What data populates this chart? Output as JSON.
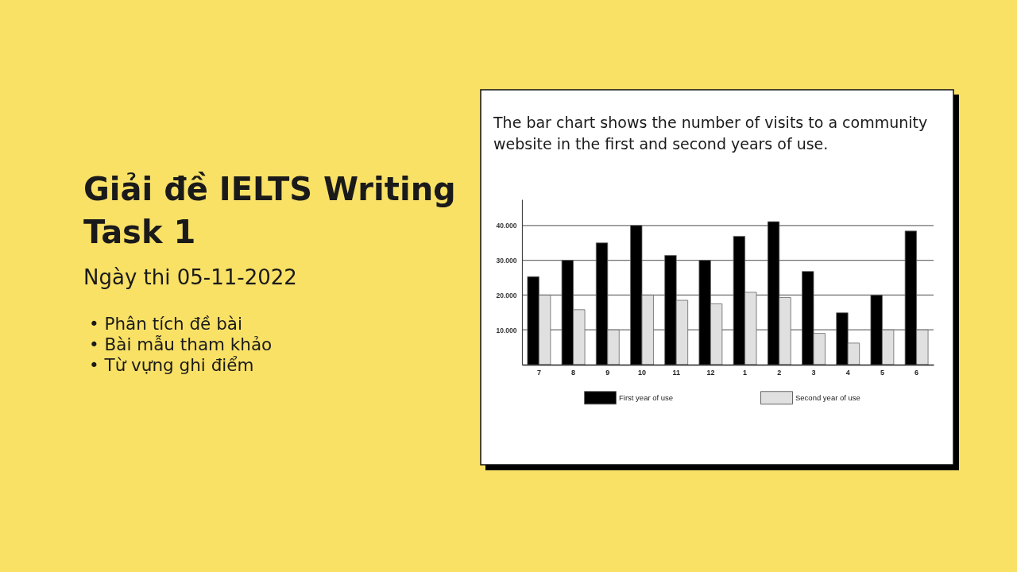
{
  "chart_data": [
    {
      "type": "other",
      "title": "Giải đề IELTS Writing Task 1",
      "subtitle": "Ngày thi 05-11-2022",
      "annotations": [
        "• Phân tích đề bài",
        "• Bài mẫu tham khảo",
        "• Từ vựng ghi điểm"
      ]
    },
    {
      "type": "bar",
      "title": "The bar chart shows the number of visits to a community website in the first and second years of use.",
      "categories": [
        "7",
        "8",
        "9",
        "10",
        "11",
        "12",
        "1",
        "2",
        "3",
        "4",
        "5",
        "6"
      ],
      "series": [
        {
          "name": "First year of use",
          "color": "#000000",
          "values": [
            25300,
            30000,
            35000,
            40000,
            31400,
            30000,
            36900,
            41100,
            26800,
            14900,
            20000,
            38400
          ]
        },
        {
          "name": "Second year of use",
          "color": "#e0e0e0",
          "values": [
            20000,
            15800,
            10000,
            20000,
            18500,
            17500,
            20800,
            19300,
            9000,
            6200,
            10000,
            10000
          ]
        }
      ],
      "ylim": [
        0,
        47500
      ],
      "yticks": [
        {
          "value": 10000,
          "label": "10.000"
        },
        {
          "value": 20000,
          "label": "20.000"
        },
        {
          "value": 30000,
          "label": "30.000"
        },
        {
          "value": 40000,
          "label": "40.000"
        }
      ],
      "grid": "y",
      "legend": "bottom"
    }
  ]
}
